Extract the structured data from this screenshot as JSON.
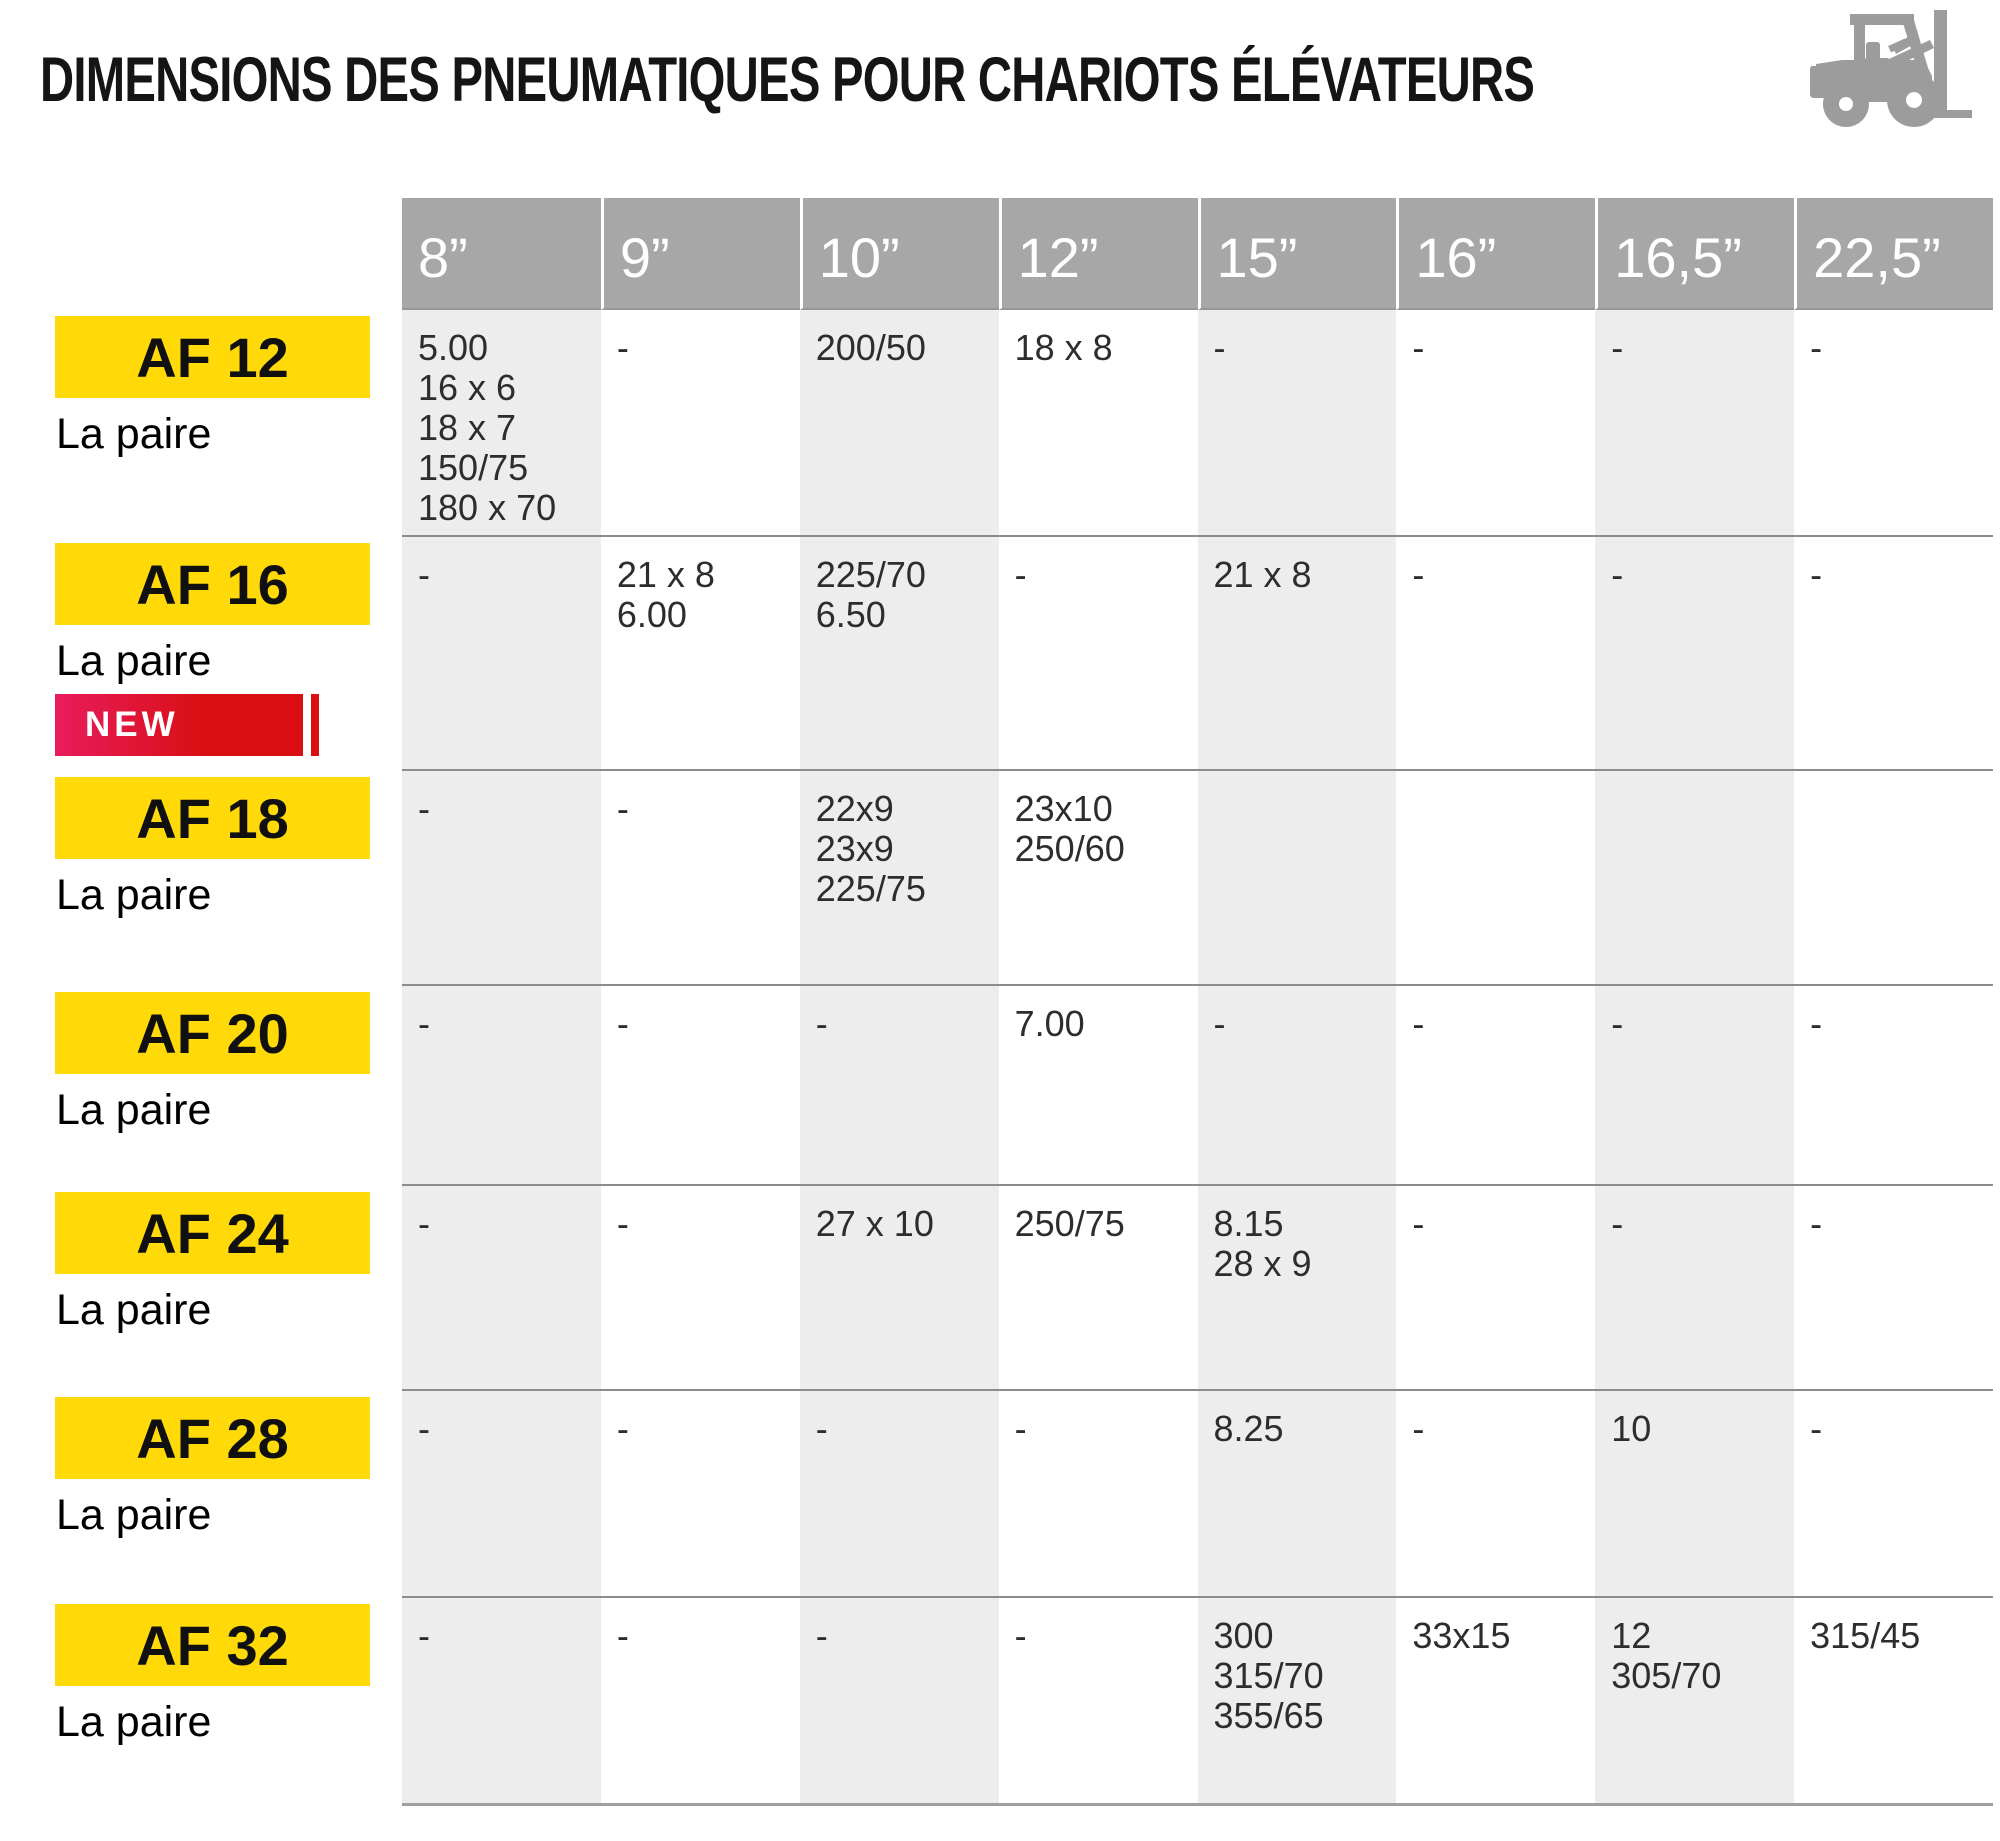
{
  "title": "DIMENSIONS DES PNEUMATIQUES POUR CHARIOTS ÉLÉVATEURS",
  "icon": "forklift-icon",
  "colors": {
    "accent_yellow": "#ffd908",
    "header_gray": "#a7a7a7",
    "stripe_gray": "#ededed",
    "divider_gray": "#8c8c8c",
    "new_badge_pink": "#e81c5c",
    "new_badge_red": "#d90f14",
    "icon_gray": "#9c9c9c"
  },
  "table": {
    "columns": [
      "8”",
      "9”",
      "10”",
      "12”",
      "15”",
      "16”",
      "16,5”",
      "22,5”"
    ],
    "rows": [
      {
        "model": "AF 12",
        "sub": "La paire",
        "new": false,
        "cells": [
          [
            "5.00",
            "16 x 6",
            "18 x 7",
            "150/75",
            "180 x 70"
          ],
          [
            "-"
          ],
          [
            "200/50"
          ],
          [
            "18 x 8"
          ],
          [
            "-"
          ],
          [
            "-"
          ],
          [
            "-"
          ],
          [
            "-"
          ]
        ]
      },
      {
        "model": "AF 16",
        "sub": "La paire",
        "new": false,
        "cells": [
          [
            "-"
          ],
          [
            "21 x 8",
            "6.00"
          ],
          [
            "225/70",
            "6.50"
          ],
          [
            "-"
          ],
          [
            "21 x 8"
          ],
          [
            "-"
          ],
          [
            "-"
          ],
          [
            "-"
          ]
        ]
      },
      {
        "model": "AF 18",
        "sub": "La paire",
        "new": true,
        "new_label": "NEW",
        "cells": [
          [
            "-"
          ],
          [
            "-"
          ],
          [
            "22x9",
            "23x9",
            "225/75"
          ],
          [
            "23x10",
            "250/60"
          ],
          [],
          [],
          [],
          []
        ]
      },
      {
        "model": "AF 20",
        "sub": "La paire",
        "new": false,
        "cells": [
          [
            "-"
          ],
          [
            "-"
          ],
          [
            "-"
          ],
          [
            "7.00"
          ],
          [
            "-"
          ],
          [
            "-"
          ],
          [
            "-"
          ],
          [
            "-"
          ]
        ]
      },
      {
        "model": "AF 24",
        "sub": "La paire",
        "new": false,
        "cells": [
          [
            "-"
          ],
          [
            "-"
          ],
          [
            "27 x 10"
          ],
          [
            "250/75"
          ],
          [
            "8.15",
            "28 x 9"
          ],
          [
            "-"
          ],
          [
            "-"
          ],
          [
            "-"
          ]
        ]
      },
      {
        "model": "AF 28",
        "sub": "La paire",
        "new": false,
        "cells": [
          [
            "-"
          ],
          [
            "-"
          ],
          [
            "-"
          ],
          [
            "-"
          ],
          [
            "8.25"
          ],
          [
            "-"
          ],
          [
            "10"
          ],
          [
            "-"
          ]
        ]
      },
      {
        "model": "AF 32",
        "sub": "La paire",
        "new": false,
        "cells": [
          [
            "-"
          ],
          [
            "-"
          ],
          [
            "-"
          ],
          [
            "-"
          ],
          [
            "300",
            "315/70",
            "355/65"
          ],
          [
            "33x15"
          ],
          [
            "12",
            "305/70"
          ],
          [
            "315/45"
          ]
        ]
      }
    ]
  }
}
